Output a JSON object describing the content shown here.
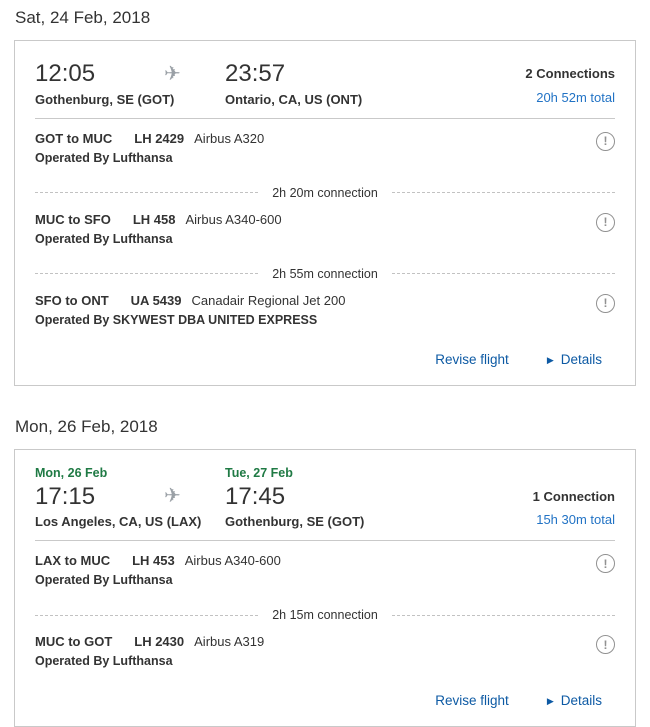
{
  "colors": {
    "link_blue": "#2273c5",
    "action_blue": "#0d5aa4",
    "date_green": "#1f7a44",
    "text": "#333333",
    "icon_gray": "#919191"
  },
  "icons": {
    "plane_glyph": "✈",
    "alert_glyph": "!",
    "details_arrow_glyph": "▶"
  },
  "sections": [
    {
      "header": "Sat, 24 Feb, 2018",
      "card": {
        "dep": {
          "date": "",
          "time": "12:05",
          "city": "Gothenburg, SE (GOT)"
        },
        "arr": {
          "date": "",
          "time": "23:57",
          "city": "Ontario, CA, US (ONT)"
        },
        "connections_label": "2 Connections",
        "duration_total": "20h 52m total",
        "segments": [
          {
            "route": "GOT to MUC",
            "flight": "LH 2429",
            "aircraft": "Airbus A320",
            "operated_by": "Operated By Lufthansa"
          },
          {
            "route": "MUC to SFO",
            "flight": "LH 458",
            "aircraft": "Airbus A340-600",
            "operated_by": "Operated By Lufthansa"
          },
          {
            "route": "SFO to ONT",
            "flight": "UA 5439",
            "aircraft": "Canadair Regional Jet 200",
            "operated_by": "Operated By SKYWEST DBA UNITED EXPRESS"
          }
        ],
        "connections": [
          "2h 20m connection",
          "2h 55m connection"
        ],
        "actions": {
          "revise": "Revise flight",
          "details": "Details"
        }
      }
    },
    {
      "header": "Mon, 26 Feb, 2018",
      "card": {
        "dep": {
          "date": "Mon, 26 Feb",
          "time": "17:15",
          "city": "Los Angeles, CA, US (LAX)"
        },
        "arr": {
          "date": "Tue, 27 Feb",
          "time": "17:45",
          "city": "Gothenburg, SE (GOT)"
        },
        "connections_label": "1 Connection",
        "duration_total": "15h 30m total",
        "segments": [
          {
            "route": "LAX to MUC",
            "flight": "LH 453",
            "aircraft": "Airbus A340-600",
            "operated_by": "Operated By Lufthansa"
          },
          {
            "route": "MUC to GOT",
            "flight": "LH 2430",
            "aircraft": "Airbus A319",
            "operated_by": "Operated By Lufthansa"
          }
        ],
        "connections": [
          "2h 15m connection"
        ],
        "actions": {
          "revise": "Revise flight",
          "details": "Details"
        }
      }
    }
  ]
}
